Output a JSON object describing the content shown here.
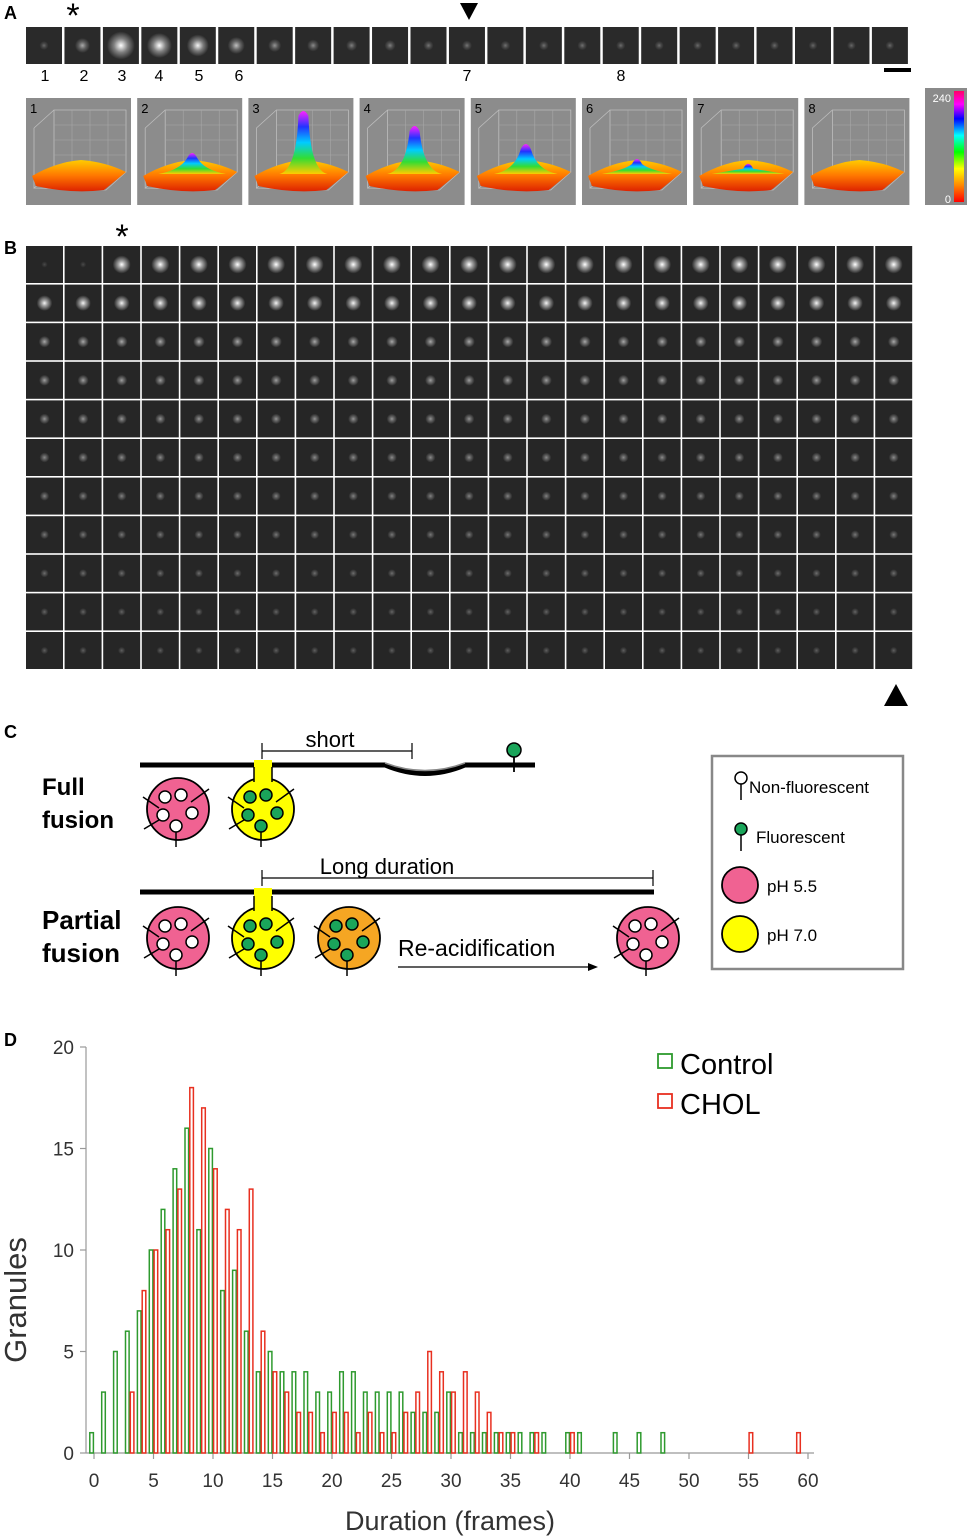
{
  "panels": {
    "a": "A",
    "b": "B",
    "c": "C",
    "d": "D"
  },
  "panel_a": {
    "frame_numbers": [
      "1",
      "2",
      "3",
      "4",
      "5",
      "6",
      "7",
      "8"
    ],
    "frame_brightness": [
      0.05,
      0.35,
      1.0,
      0.85,
      0.7,
      0.45,
      0.25,
      0.2,
      0.15,
      0.15,
      0.1,
      0.1,
      0.08,
      0.08,
      0.08,
      0.06,
      0.06,
      0.05,
      0.05,
      0.05,
      0.04,
      0.04,
      0.04
    ],
    "asterisk": "*",
    "surface_labels": [
      "1",
      "2",
      "3",
      "4",
      "5",
      "6",
      "7",
      "8"
    ],
    "surface_peaks": [
      0.05,
      0.3,
      1.0,
      0.75,
      0.45,
      0.2,
      0.12,
      0.1
    ],
    "colorbar": {
      "max": "240",
      "min": "0"
    }
  },
  "panel_b": {
    "rows": 11,
    "cols": 23,
    "asterisk": "*"
  },
  "panel_c": {
    "full_fusion": "Full fusion",
    "partial_fusion": "Partial fusion",
    "short": "short",
    "long_duration": "Long duration",
    "reacidification": "Re-acidification",
    "legend": {
      "non_fluorescent": "Non-fluorescent",
      "fluorescent": "Fluorescent",
      "ph55": "pH 5.5",
      "ph70": "pH 7.0"
    },
    "colors": {
      "ph55": "#f06292",
      "ph70": "#ffff00",
      "intermediate": "#f5a623",
      "fluorescent": "#1aa55a"
    }
  },
  "chart_data": {
    "type": "bar",
    "xlabel": "Duration (frames)",
    "ylabel": "Granules",
    "xlim": [
      0,
      60
    ],
    "ylim": [
      0,
      20
    ],
    "xticks": [
      0,
      5,
      10,
      15,
      20,
      25,
      30,
      35,
      40,
      45,
      50,
      55,
      60
    ],
    "yticks": [
      0,
      5,
      10,
      15,
      20
    ],
    "legend_position": "top-right",
    "series": [
      {
        "name": "Control",
        "color": "#2e9a2e",
        "x": [
          0,
          1,
          2,
          3,
          4,
          5,
          6,
          7,
          8,
          9,
          10,
          11,
          12,
          13,
          14,
          15,
          16,
          17,
          18,
          19,
          20,
          21,
          22,
          23,
          24,
          25,
          26,
          27,
          28,
          29,
          30,
          31,
          32,
          33,
          34,
          35,
          36,
          37,
          38,
          40,
          41,
          44,
          46,
          48
        ],
        "y": [
          1,
          3,
          5,
          6,
          7,
          10,
          12,
          14,
          16,
          11,
          15,
          8,
          9,
          6,
          4,
          5,
          4,
          4,
          4,
          3,
          3,
          4,
          4,
          3,
          3,
          3,
          3,
          2,
          2,
          2,
          3,
          1,
          1,
          1,
          1,
          1,
          1,
          1,
          1,
          1,
          1,
          1,
          1,
          1
        ]
      },
      {
        "name": "CHOL",
        "color": "#e83020",
        "x": [
          3,
          4,
          5,
          6,
          7,
          8,
          9,
          10,
          11,
          12,
          13,
          14,
          15,
          16,
          17,
          18,
          19,
          20,
          21,
          22,
          23,
          24,
          25,
          26,
          27,
          28,
          29,
          30,
          31,
          32,
          33,
          34,
          35,
          37,
          40,
          55,
          59
        ],
        "y": [
          3,
          8,
          10,
          11,
          13,
          18,
          17,
          14,
          12,
          11,
          13,
          6,
          4,
          3,
          2,
          2,
          1,
          2,
          2,
          1,
          2,
          1,
          1,
          2,
          3,
          5,
          4,
          3,
          4,
          3,
          2,
          1,
          1,
          1,
          1,
          1,
          1
        ]
      }
    ]
  }
}
